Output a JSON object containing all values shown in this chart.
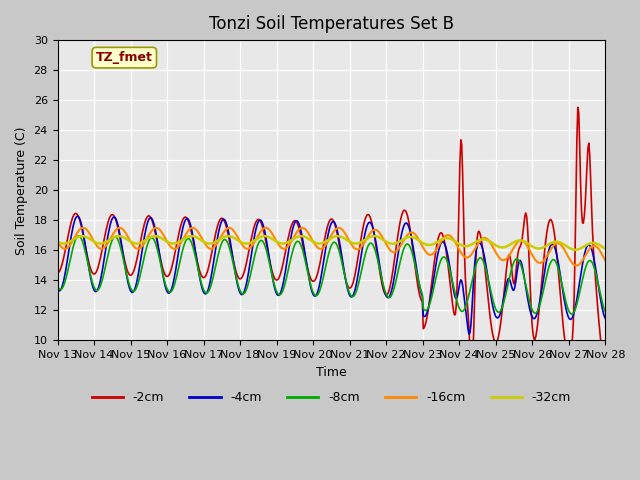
{
  "title": "Tonzi Soil Temperatures Set B",
  "xlabel": "Time",
  "ylabel": "Soil Temperature (C)",
  "ylim": [
    10,
    30
  ],
  "xlim": [
    0,
    15
  ],
  "series_colors": {
    "-2cm": "#cc0000",
    "-4cm": "#0000cc",
    "-8cm": "#00aa00",
    "-16cm": "#ff8800",
    "-32cm": "#cccc00"
  },
  "xtick_labels": [
    "Nov 13",
    "Nov 14",
    "Nov 15",
    "Nov 16",
    "Nov 17",
    "Nov 18",
    "Nov 19",
    "Nov 20",
    "Nov 21",
    "Nov 22",
    "Nov 23",
    "Nov 24",
    "Nov 25",
    "Nov 26",
    "Nov 27",
    "Nov 28"
  ],
  "annotation_text": "TZ_fmet",
  "annotation_bg": "#ffffcc",
  "annotation_border": "#999900",
  "annotation_text_color": "#880000"
}
